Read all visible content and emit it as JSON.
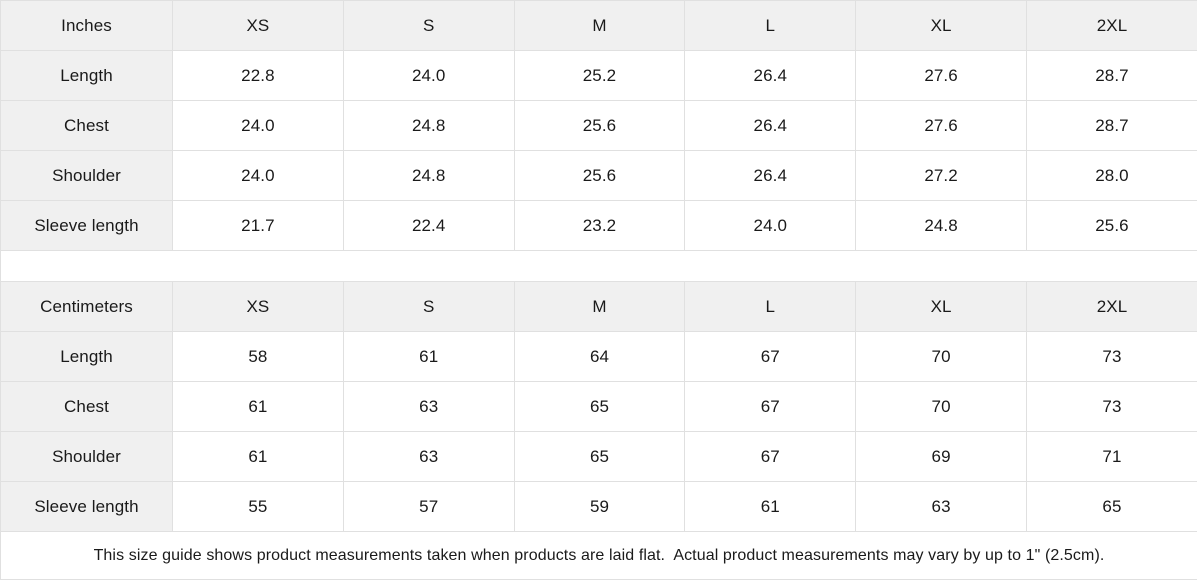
{
  "colors": {
    "header_background": "#f0f0f0",
    "cell_background": "#ffffff",
    "border": "#e0e0e0",
    "text": "#1a1a1a"
  },
  "size_guide": {
    "columns": [
      "XS",
      "S",
      "M",
      "L",
      "XL",
      "2XL"
    ],
    "sections": [
      {
        "unit_label": "Inches",
        "rows": [
          {
            "label": "Length",
            "values": [
              "22.8",
              "24.0",
              "25.2",
              "26.4",
              "27.6",
              "28.7"
            ]
          },
          {
            "label": "Chest",
            "values": [
              "24.0",
              "24.8",
              "25.6",
              "26.4",
              "27.6",
              "28.7"
            ]
          },
          {
            "label": "Shoulder",
            "values": [
              "24.0",
              "24.8",
              "25.6",
              "26.4",
              "27.2",
              "28.0"
            ]
          },
          {
            "label": "Sleeve length",
            "values": [
              "21.7",
              "22.4",
              "23.2",
              "24.0",
              "24.8",
              "25.6"
            ]
          }
        ]
      },
      {
        "unit_label": "Centimeters",
        "rows": [
          {
            "label": "Length",
            "values": [
              "58",
              "61",
              "64",
              "67",
              "70",
              "73"
            ]
          },
          {
            "label": "Chest",
            "values": [
              "61",
              "63",
              "65",
              "67",
              "70",
              "73"
            ]
          },
          {
            "label": "Shoulder",
            "values": [
              "61",
              "63",
              "65",
              "67",
              "69",
              "71"
            ]
          },
          {
            "label": "Sleeve length",
            "values": [
              "55",
              "57",
              "59",
              "61",
              "63",
              "65"
            ]
          }
        ]
      }
    ],
    "footnote": "This size guide shows product measurements taken when products are laid flat.  Actual product measurements may vary by up to 1\" (2.5cm)."
  }
}
